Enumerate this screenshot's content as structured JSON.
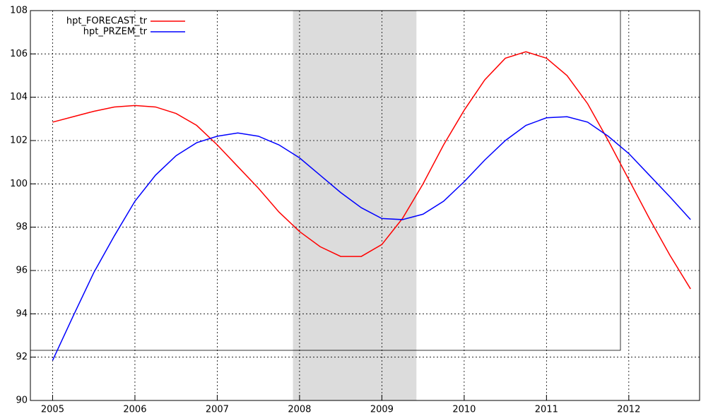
{
  "chart_data": {
    "type": "line",
    "x": [
      2005,
      2005.25,
      2005.5,
      2005.75,
      2006,
      2006.25,
      2006.5,
      2006.75,
      2007,
      2007.25,
      2007.5,
      2007.75,
      2008,
      2008.25,
      2008.5,
      2008.75,
      2009,
      2009.25,
      2009.5,
      2009.75,
      2010,
      2010.25,
      2010.5,
      2010.75,
      2011,
      2011.25,
      2011.5,
      2011.75,
      2012,
      2012.25,
      2012.5,
      2012.75
    ],
    "series": [
      {
        "name": "hpt_FORECAST_tr",
        "color": "#ff0000",
        "values": [
          102.85,
          103.1,
          103.35,
          103.55,
          103.62,
          103.55,
          103.25,
          102.7,
          101.8,
          100.8,
          99.8,
          98.7,
          97.8,
          97.1,
          96.65,
          96.65,
          97.2,
          98.4,
          100.0,
          101.8,
          103.4,
          104.8,
          105.8,
          106.1,
          105.8,
          105.0,
          103.7,
          102.0,
          100.2,
          98.4,
          96.7,
          95.15
        ]
      },
      {
        "name": "hpt_PRZEM_tr",
        "color": "#0000ff",
        "values": [
          91.85,
          93.9,
          95.9,
          97.6,
          99.2,
          100.4,
          101.3,
          101.9,
          102.2,
          102.35,
          102.2,
          101.8,
          101.2,
          100.4,
          99.6,
          98.9,
          98.4,
          98.35,
          98.6,
          99.2,
          100.1,
          101.1,
          102.0,
          102.7,
          103.05,
          103.1,
          102.85,
          102.2,
          101.4,
          100.4,
          99.4,
          98.35
        ]
      }
    ],
    "shade": [
      2007.92,
      2009.42
    ],
    "xlim": [
      2004.73,
      2012.86
    ],
    "xticks": [
      2005,
      2006,
      2007,
      2008,
      2009,
      2010,
      2011,
      2012
    ],
    "ylim": [
      90,
      108
    ],
    "yticks": [
      90,
      92,
      94,
      96,
      98,
      100,
      102,
      104,
      106,
      108
    ],
    "grid": true,
    "legend": "top-left"
  }
}
